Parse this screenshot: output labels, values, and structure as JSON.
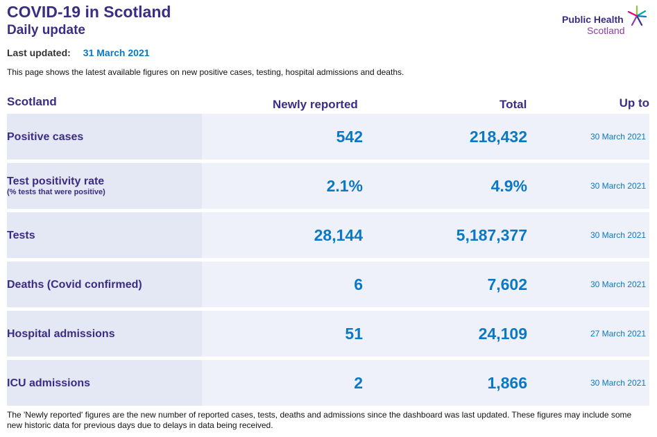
{
  "header": {
    "title": "COVID-19 in Scotland",
    "subtitle": "Daily update"
  },
  "logo": {
    "line1": "Public Health",
    "line2": "Scotland",
    "star_colors": [
      "#0b78c5",
      "#8cc63f",
      "#3b2c84",
      "#8a3ea0",
      "#e6007e",
      "#00a99d"
    ]
  },
  "updated": {
    "label": "Last updated:",
    "value": "31 March 2021"
  },
  "intro": "This page shows the latest available figures on new positive cases, testing, hospital admissions and deaths.",
  "table": {
    "headers": {
      "scotland": "Scotland",
      "new": "Newly reported",
      "total": "Total",
      "upto": "Up to"
    },
    "rows": [
      {
        "label": "Positive cases",
        "sub": "",
        "new": "542",
        "total": "218,432",
        "upto": "30 March 2021"
      },
      {
        "label": "Test positivity rate",
        "sub": "(% tests that were positive)",
        "new": "2.1%",
        "total": "4.9%",
        "upto": "30 March 2021"
      },
      {
        "label": "Tests",
        "sub": "",
        "new": "28,144",
        "total": "5,187,377",
        "upto": "30 March 2021"
      },
      {
        "label": "Deaths (Covid confirmed)",
        "sub": "",
        "new": "6",
        "total": "7,602",
        "upto": "30 March 2021"
      },
      {
        "label": "Hospital admissions",
        "sub": "",
        "new": "51",
        "total": "24,109",
        "upto": "27 March 2021"
      },
      {
        "label": "ICU admissions",
        "sub": "",
        "new": "2",
        "total": "1,866",
        "upto": "30 March 2021"
      }
    ]
  },
  "footnote": "The 'Newly reported' figures are the new number of reported cases, tests, deaths and admissions since the dashboard was last updated. These figures may include some new historic data for previous days due to delays in data being received.",
  "colors": {
    "primary": "#3b2c84",
    "accent": "#0b78c5",
    "row_label_bg": "#e4e8f4",
    "row_bg": "#eef1f9"
  }
}
